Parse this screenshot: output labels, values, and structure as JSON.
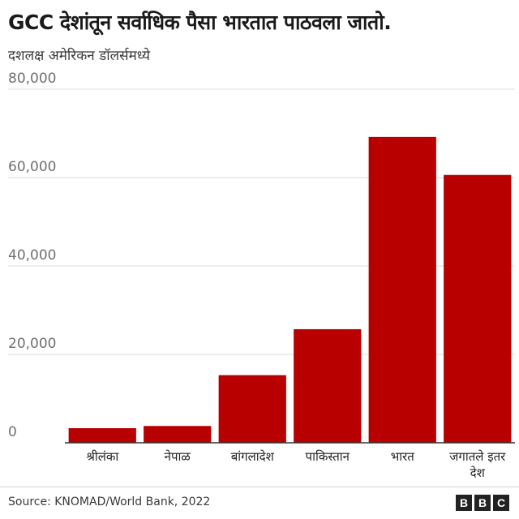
{
  "header": {
    "title": "GCC देशांतून सर्वाधिक पैसा भारतात पाठवला जातो.",
    "subtitle": "दशलक्ष अमेरिकन डॉलर्समध्ये"
  },
  "footer": {
    "source": "Source: KNOMAD/World Bank, 2022",
    "logo_letters": [
      "B",
      "B",
      "C"
    ]
  },
  "chart_data": {
    "type": "bar",
    "title": "GCC देशांतून सर्वाधिक पैसा भारतात पाठवला जातो.",
    "subtitle": "दशलक्ष अमेरिकन डॉलर्समध्ये",
    "categories": [
      "श्रीलंका",
      "नेपाळ",
      "बांगलादेश",
      "पाकिस्तान",
      "भारत",
      "जगातले इतर देश"
    ],
    "values": [
      3300,
      3800,
      15300,
      25700,
      69200,
      60600
    ],
    "ylim": [
      0,
      80000
    ],
    "yticks": [
      0,
      20000,
      40000,
      60000,
      80000
    ],
    "ytick_labels": [
      "0",
      "20,000",
      "40,000",
      "60,000",
      "80,000"
    ],
    "grid": true,
    "bar_color": "#b80000",
    "gridline_color": "#dddddd"
  }
}
